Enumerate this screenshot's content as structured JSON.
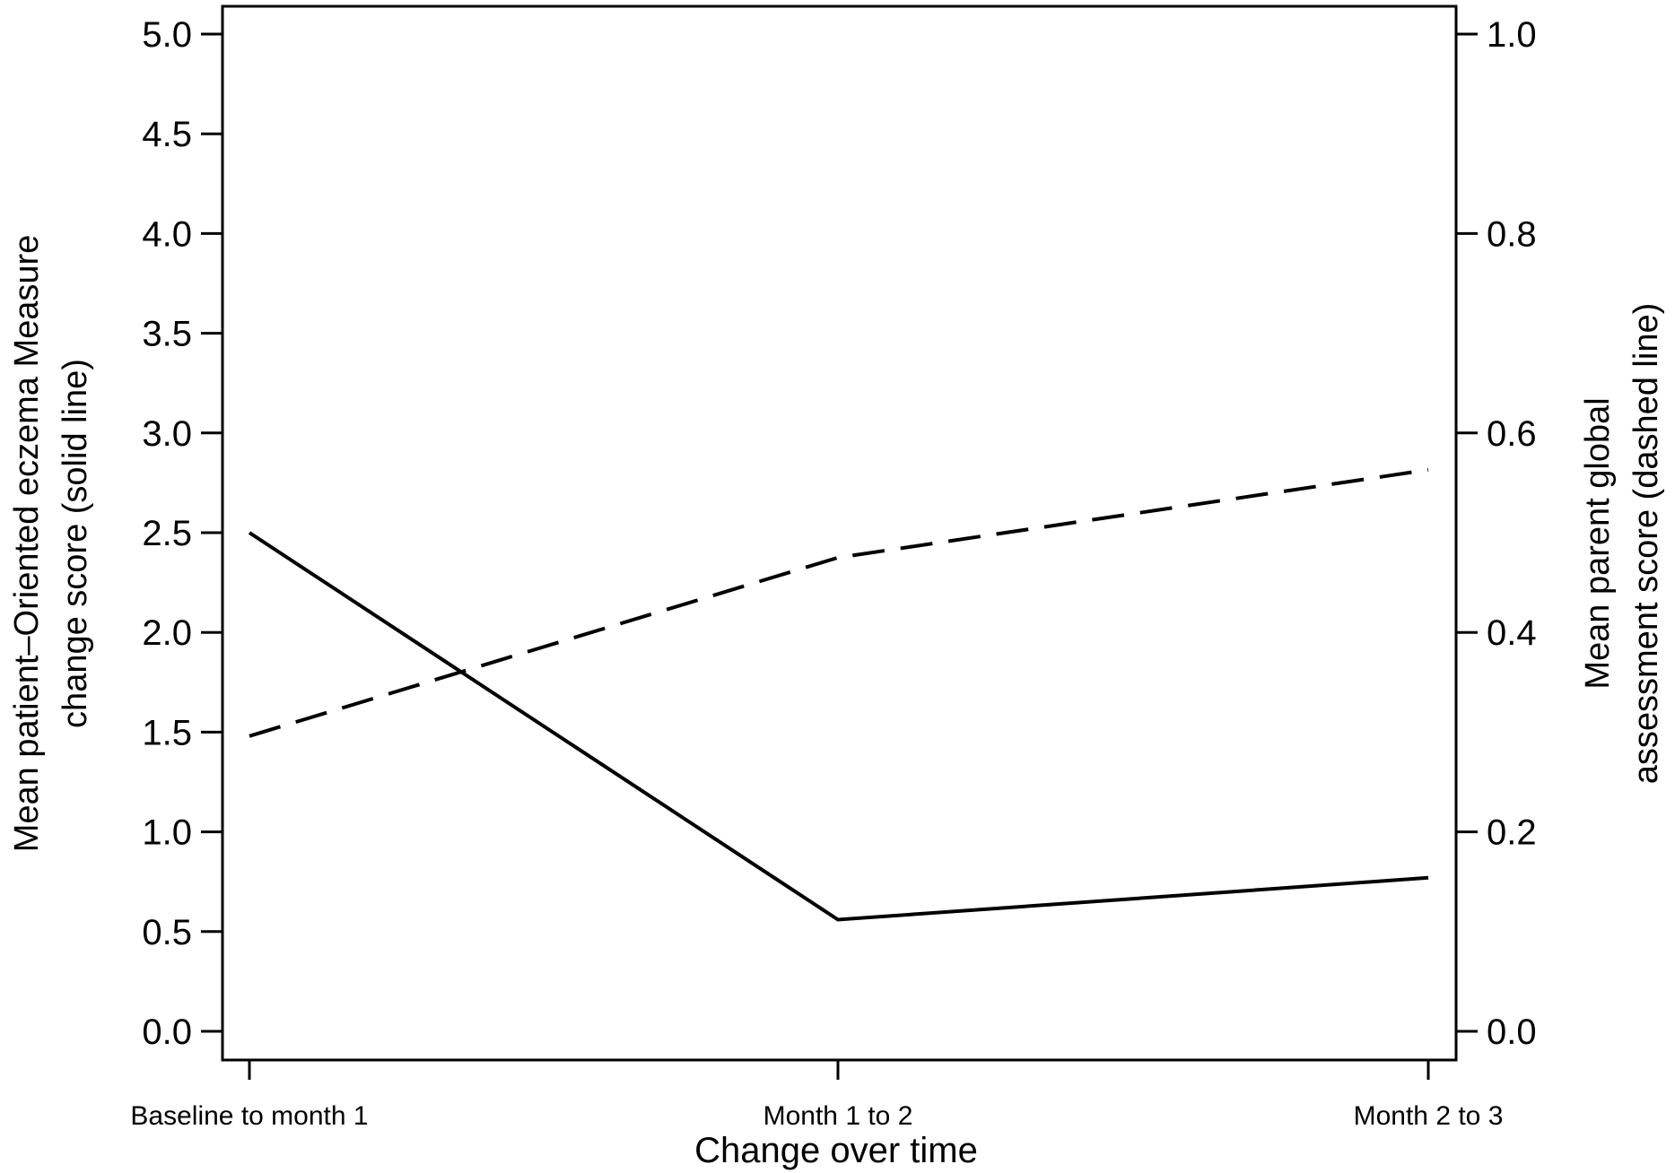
{
  "chart_data": {
    "type": "line",
    "categories": [
      "Baseline to month 1",
      "Month 1 to 2",
      "Month 2 to 3"
    ],
    "xlabel": "Change over time",
    "ylabel_left": [
      "Mean patient–Oriented eczema Measure",
      "change score (solid line)"
    ],
    "ylabel_right": [
      "Mean parent global",
      "assessment score (dashed line)"
    ],
    "ylim_left": [
      0,
      5
    ],
    "yticks_left": [
      "0.0",
      "0.5",
      "1.0",
      "1.5",
      "2.0",
      "2.5",
      "3.0",
      "3.5",
      "4.0",
      "4.5",
      "5.0"
    ],
    "ylim_right": [
      0,
      1
    ],
    "yticks_right": [
      "0.0",
      "0.2",
      "0.4",
      "0.6",
      "0.8",
      "1.0"
    ],
    "grid": false,
    "series": [
      {
        "axis": "left",
        "style": "solid",
        "values": [
          2.5,
          0.56,
          0.77
        ]
      },
      {
        "axis": "right",
        "style": "dashed",
        "values": [
          0.296,
          0.475,
          0.563
        ]
      }
    ]
  }
}
